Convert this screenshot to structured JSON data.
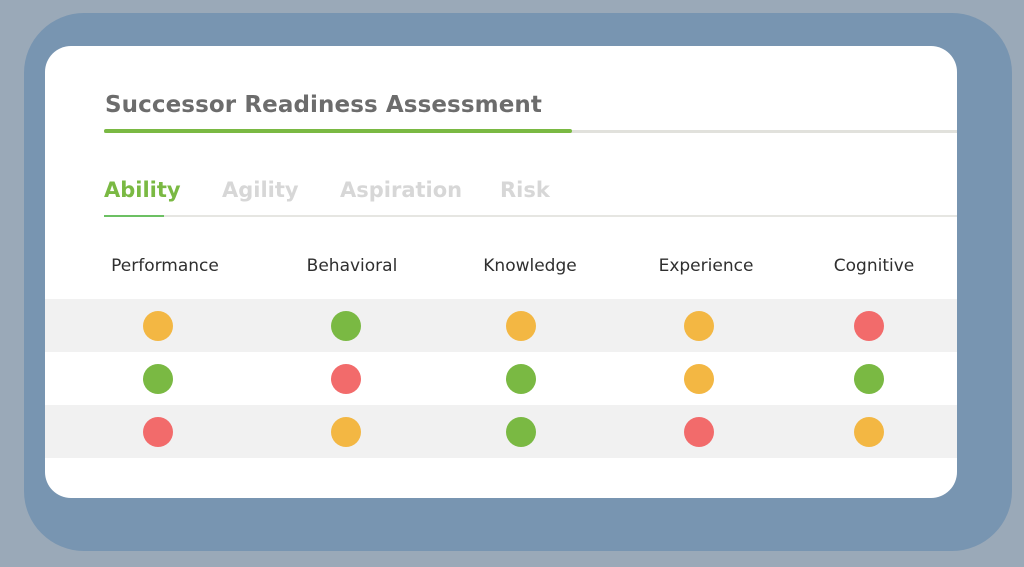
{
  "colors": {
    "green": "#7ab943",
    "amber": "#f3b743",
    "red": "#f26b6b",
    "title": "#6c6c6c",
    "tab_inactive": "#d7d7d7"
  },
  "header": {
    "title": "Successor Readiness Assessment",
    "progress_percent": 55
  },
  "tabs": [
    {
      "label": "Ability",
      "active": true
    },
    {
      "label": "Agility",
      "active": false
    },
    {
      "label": "Aspiration",
      "active": false
    },
    {
      "label": "Risk",
      "active": false
    }
  ],
  "table": {
    "columns": [
      "Performance",
      "Behavioral",
      "Knowledge",
      "Experience",
      "Cognitive"
    ],
    "rows": [
      [
        "amber",
        "green",
        "amber",
        "amber",
        "red"
      ],
      [
        "green",
        "red",
        "green",
        "amber",
        "green"
      ],
      [
        "red",
        "amber",
        "green",
        "red",
        "amber"
      ]
    ]
  }
}
